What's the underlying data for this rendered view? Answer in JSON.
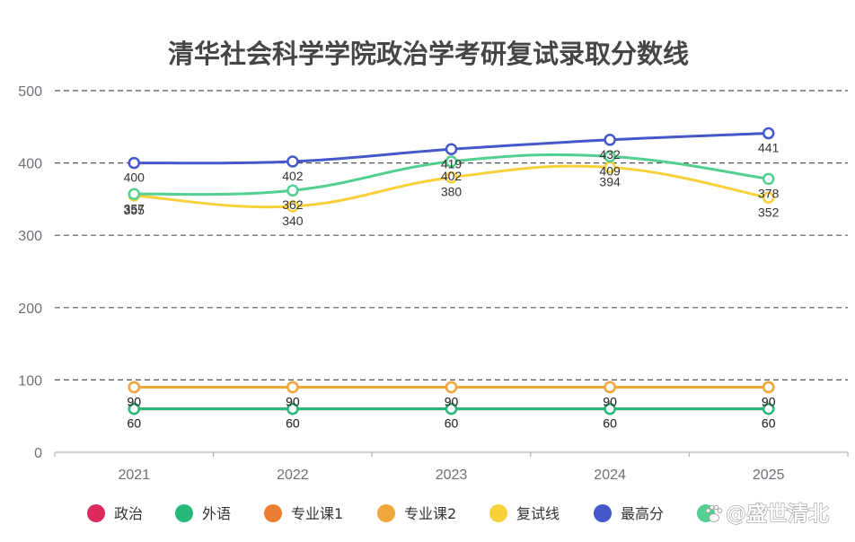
{
  "chart_data": {
    "type": "line",
    "title": "清华社会科学学院政治学考研复试录取分数线",
    "xlabel": "",
    "ylabel": "",
    "categories": [
      "2021",
      "2022",
      "2023",
      "2024",
      "2025"
    ],
    "ylim": [
      0,
      500
    ],
    "yticks": [
      0,
      100,
      200,
      300,
      400,
      500
    ],
    "grid": true,
    "legend_position": "bottom",
    "smooth": true,
    "series": [
      {
        "name": "政治",
        "color": "#dc2a5f",
        "values": [
          60,
          60,
          60,
          60,
          60
        ]
      },
      {
        "name": "外语",
        "color": "#27b97b",
        "values": [
          60,
          60,
          60,
          60,
          60
        ]
      },
      {
        "name": "专业课1",
        "color": "#eb7d33",
        "values": [
          90,
          90,
          90,
          90,
          90
        ]
      },
      {
        "name": "专业课2",
        "color": "#efa63c",
        "values": [
          90,
          90,
          90,
          90,
          90
        ]
      },
      {
        "name": "复试线",
        "color": "#f7d03a",
        "values": [
          355,
          340,
          380,
          394,
          352
        ]
      },
      {
        "name": "最高分",
        "color": "#4558c9",
        "values": [
          400,
          402,
          419,
          432,
          441
        ]
      },
      {
        "name": "",
        "color": "#52cf91",
        "values": [
          357,
          362,
          402,
          409,
          378
        ]
      }
    ]
  },
  "watermark": {
    "text": "@盛世清北",
    "icon": "paw-logo-icon"
  }
}
